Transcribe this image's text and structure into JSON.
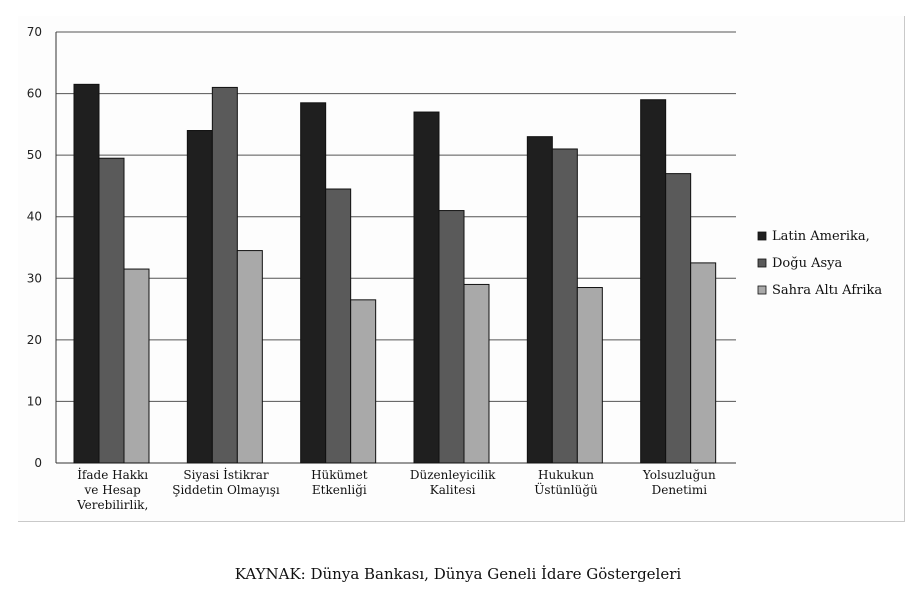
{
  "chart_data": {
    "type": "bar",
    "title": "",
    "xlabel": "",
    "ylabel": "",
    "ylim": [
      0,
      70
    ],
    "yticks": [
      0,
      10,
      20,
      30,
      40,
      50,
      60,
      70
    ],
    "grid": true,
    "legend_position": "right",
    "categories": [
      [
        "İfade Hakkı",
        "ve Hesap",
        "Verebilirlik,"
      ],
      [
        "Siyasi İstikrar",
        "Şiddetin Olmayışı"
      ],
      [
        "Hükümet",
        "Etkenliği"
      ],
      [
        "Düzenleyicilik",
        "Kalitesi"
      ],
      [
        "Hukukun",
        "Üstünlüğü"
      ],
      [
        "Yolsuzluğun",
        "Denetimi"
      ]
    ],
    "series": [
      {
        "name": "Latin Amerika,",
        "color": "#1f1f1f",
        "values": [
          61.5,
          54,
          58.5,
          57,
          53,
          59
        ]
      },
      {
        "name": "Doğu Asya",
        "color": "#5a5a5a",
        "values": [
          49.5,
          61,
          44.5,
          41,
          51,
          47
        ]
      },
      {
        "name": "Sahra Altı Afrika",
        "color": "#a9a9a9",
        "values": [
          31.5,
          34.5,
          26.5,
          29,
          28.5,
          32.5
        ]
      }
    ]
  },
  "caption": "KAYNAK: Dünya Bankası, Dünya Geneli İdare Göstergeleri"
}
